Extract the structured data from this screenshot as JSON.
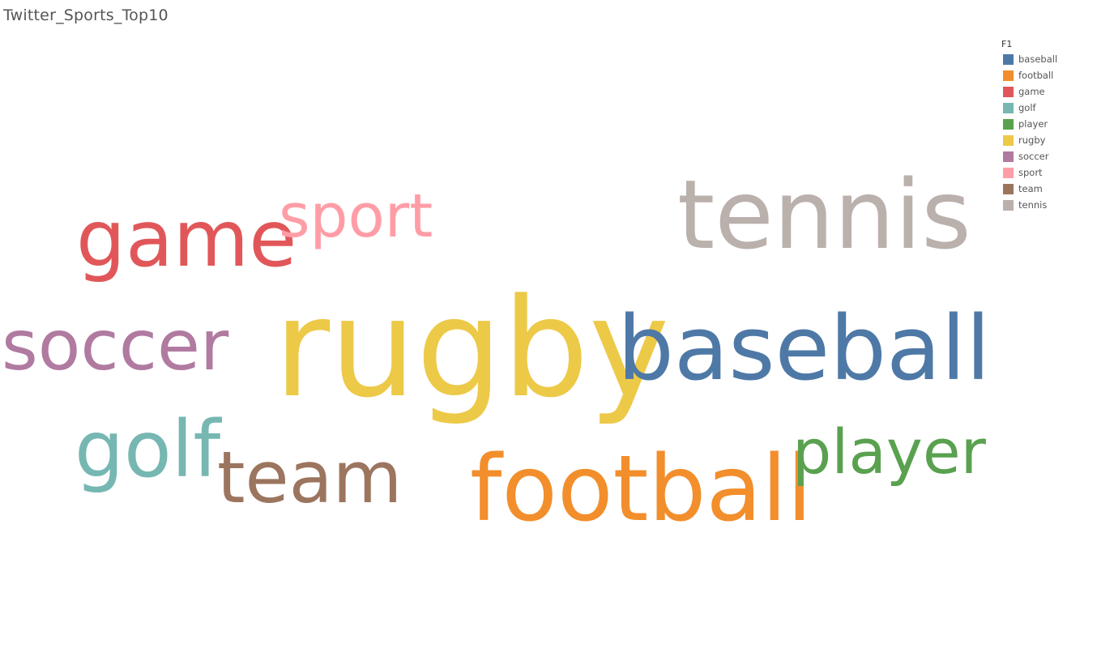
{
  "sheet": {
    "title": "Twitter_Sports_Top10"
  },
  "legend": {
    "title": "F1",
    "items": [
      {
        "label": "baseball",
        "color": "#4e79a7"
      },
      {
        "label": "football",
        "color": "#f28e2b"
      },
      {
        "label": "game",
        "color": "#e15759"
      },
      {
        "label": "golf",
        "color": "#76b7b2"
      },
      {
        "label": "player",
        "color": "#59a14f"
      },
      {
        "label": "rugby",
        "color": "#edc948"
      },
      {
        "label": "soccer",
        "color": "#b07aa1"
      },
      {
        "label": "sport",
        "color": "#ff9da7"
      },
      {
        "label": "team",
        "color": "#9c755f"
      },
      {
        "label": "tennis",
        "color": "#bab0ac"
      }
    ]
  },
  "chart_data": {
    "type": "wordcloud",
    "title": "Twitter_Sports_Top10",
    "legend_title": "F1",
    "legend_position": "top-right",
    "words": [
      {
        "text": "rugby",
        "weight": 10,
        "color": "#edc948"
      },
      {
        "text": "baseball",
        "weight": 8,
        "color": "#4e79a7"
      },
      {
        "text": "tennis",
        "weight": 7,
        "color": "#bab0ac"
      },
      {
        "text": "football",
        "weight": 7,
        "color": "#f28e2b"
      },
      {
        "text": "game",
        "weight": 6,
        "color": "#e15759"
      },
      {
        "text": "soccer",
        "weight": 6,
        "color": "#b07aa1"
      },
      {
        "text": "golf",
        "weight": 6,
        "color": "#76b7b2"
      },
      {
        "text": "team",
        "weight": 5,
        "color": "#9c755f"
      },
      {
        "text": "sport",
        "weight": 4,
        "color": "#ff9da7"
      },
      {
        "text": "player",
        "weight": 4,
        "color": "#59a14f"
      }
    ]
  }
}
